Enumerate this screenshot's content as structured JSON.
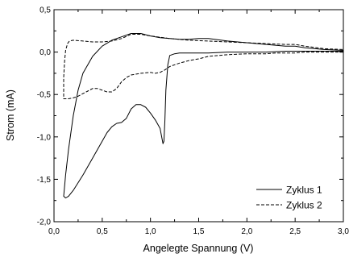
{
  "chart_data": {
    "type": "line",
    "title": "",
    "xlabel": "Angelegte Spannung (V)",
    "ylabel": "Strom (mA)",
    "xlim": [
      0.0,
      3.0
    ],
    "ylim": [
      -2.0,
      0.5
    ],
    "x_ticks": [
      0.0,
      0.5,
      1.0,
      1.5,
      2.0,
      2.5,
      3.0
    ],
    "x_tick_labels": [
      "0,0",
      "0,5",
      "1,0",
      "1,5",
      "2,0",
      "2,5",
      "3,0"
    ],
    "y_ticks": [
      0.5,
      0.0,
      -0.5,
      -1.0,
      -1.5,
      -2.0
    ],
    "y_tick_labels": [
      "0,5",
      "0,0",
      "-0,5",
      "-1,0",
      "-1,5",
      "-2,0"
    ],
    "grid": false,
    "legend_position": "bottom-right",
    "series": [
      {
        "name": "Zyklus 1",
        "style": "solid",
        "color": "#000000",
        "x": [
          3.0,
          2.8,
          2.6,
          2.4,
          2.2,
          2.0,
          1.8,
          1.6,
          1.4,
          1.3,
          1.25,
          1.2,
          1.18,
          1.16,
          1.15,
          1.14,
          1.13,
          1.12,
          1.1,
          1.05,
          1.0,
          0.95,
          0.9,
          0.85,
          0.8,
          0.75,
          0.7,
          0.65,
          0.6,
          0.55,
          0.5,
          0.4,
          0.3,
          0.2,
          0.15,
          0.12,
          0.1,
          0.12,
          0.15,
          0.2,
          0.25,
          0.3,
          0.4,
          0.5,
          0.6,
          0.7,
          0.8,
          0.9,
          1.0,
          1.1,
          1.2,
          1.3,
          1.4,
          1.5,
          1.6,
          1.8,
          2.0,
          2.2,
          2.4,
          2.5,
          2.6,
          2.8,
          3.0
        ],
        "y": [
          0.01,
          0.01,
          0.01,
          0.01,
          0.0,
          0.0,
          0.0,
          -0.01,
          -0.01,
          -0.01,
          -0.02,
          -0.04,
          -0.15,
          -0.45,
          -0.8,
          -1.05,
          -1.08,
          -1.02,
          -0.9,
          -0.8,
          -0.72,
          -0.65,
          -0.62,
          -0.62,
          -0.67,
          -0.78,
          -0.83,
          -0.84,
          -0.88,
          -0.95,
          -1.05,
          -1.25,
          -1.45,
          -1.63,
          -1.7,
          -1.72,
          -1.7,
          -1.45,
          -1.15,
          -0.75,
          -0.45,
          -0.25,
          -0.05,
          0.07,
          0.14,
          0.18,
          0.22,
          0.22,
          0.19,
          0.17,
          0.16,
          0.15,
          0.15,
          0.16,
          0.16,
          0.13,
          0.11,
          0.09,
          0.07,
          0.07,
          0.05,
          0.03,
          0.02
        ]
      },
      {
        "name": "Zyklus 2",
        "style": "dashed",
        "color": "#000000",
        "x": [
          3.0,
          2.8,
          2.6,
          2.5,
          2.4,
          2.3,
          2.2,
          2.0,
          1.8,
          1.6,
          1.5,
          1.4,
          1.3,
          1.2,
          1.15,
          1.1,
          1.05,
          1.0,
          0.9,
          0.8,
          0.75,
          0.7,
          0.65,
          0.6,
          0.55,
          0.5,
          0.45,
          0.4,
          0.35,
          0.3,
          0.25,
          0.2,
          0.15,
          0.12,
          0.1,
          0.1,
          0.11,
          0.12,
          0.14,
          0.16,
          0.2,
          0.3,
          0.4,
          0.5,
          0.6,
          0.7,
          0.8,
          0.9,
          1.0,
          1.2,
          1.4,
          1.6,
          1.8,
          2.0,
          2.2,
          2.4,
          2.5,
          2.6,
          2.8,
          3.0
        ],
        "y": [
          0.0,
          0.0,
          0.0,
          -0.01,
          -0.01,
          -0.01,
          -0.02,
          -0.02,
          -0.03,
          -0.05,
          -0.08,
          -0.1,
          -0.13,
          -0.17,
          -0.21,
          -0.24,
          -0.25,
          -0.24,
          -0.25,
          -0.27,
          -0.3,
          -0.35,
          -0.43,
          -0.47,
          -0.47,
          -0.45,
          -0.43,
          -0.43,
          -0.46,
          -0.49,
          -0.52,
          -0.54,
          -0.55,
          -0.55,
          -0.55,
          -0.3,
          -0.1,
          0.02,
          0.1,
          0.13,
          0.14,
          0.13,
          0.12,
          0.12,
          0.13,
          0.16,
          0.21,
          0.21,
          0.19,
          0.16,
          0.14,
          0.13,
          0.12,
          0.11,
          0.1,
          0.09,
          0.09,
          0.07,
          0.04,
          0.03
        ]
      }
    ]
  }
}
